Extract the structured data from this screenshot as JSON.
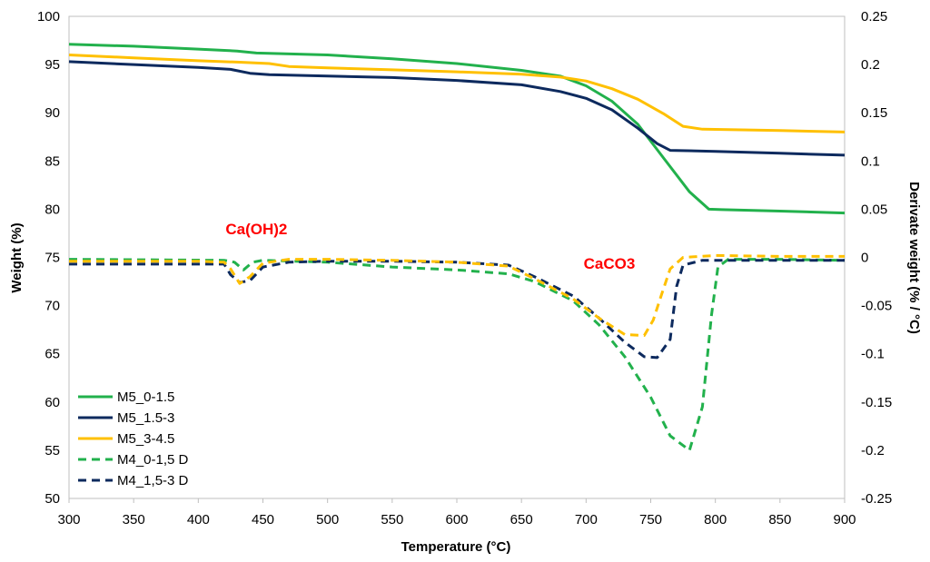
{
  "chart_data": {
    "type": "line",
    "title": "",
    "xlabel": "Temperature (°C)",
    "ylabel": "Weight (%)",
    "y2label": "Derivate weight (% / °C)",
    "xlim": [
      300,
      900
    ],
    "ylim": [
      50,
      100
    ],
    "y2lim": [
      -0.25,
      0.25
    ],
    "xticks": [
      "300",
      "350",
      "400",
      "450",
      "500",
      "550",
      "600",
      "650",
      "700",
      "750",
      "800",
      "850",
      "900"
    ],
    "yticks": [
      "50",
      "55",
      "60",
      "65",
      "70",
      "75",
      "80",
      "85",
      "90",
      "95",
      "100"
    ],
    "y2ticks": [
      "-0.25",
      "-0.2",
      "-0.15",
      "-0.1",
      "-0.05",
      "0",
      "0.05",
      "0.1",
      "0.15",
      "0.2",
      "0.25"
    ],
    "grid": false,
    "legend_position": "bottom-left",
    "annotations": [
      {
        "text": "Ca(OH)2",
        "x": 445,
        "y": 77.4,
        "color": "#ff0000"
      },
      {
        "text": "CaCO3",
        "x": 718,
        "y": 73.8,
        "color": "#ff0000"
      }
    ],
    "series": [
      {
        "name": "M5_0-1.5",
        "axis": "left",
        "color": "#22b14c",
        "dash": false,
        "points": [
          [
            300,
            97.1
          ],
          [
            350,
            96.9
          ],
          [
            400,
            96.6
          ],
          [
            430,
            96.4
          ],
          [
            445,
            96.2
          ],
          [
            500,
            96.0
          ],
          [
            550,
            95.6
          ],
          [
            600,
            95.1
          ],
          [
            650,
            94.4
          ],
          [
            680,
            93.8
          ],
          [
            700,
            92.8
          ],
          [
            720,
            91.2
          ],
          [
            740,
            88.8
          ],
          [
            760,
            85.3
          ],
          [
            780,
            81.8
          ],
          [
            795,
            80.0
          ],
          [
            805,
            79.95
          ],
          [
            850,
            79.8
          ],
          [
            900,
            79.6
          ]
        ]
      },
      {
        "name": "M5_1.5-3",
        "axis": "left",
        "color": "#0d2a5e",
        "dash": false,
        "points": [
          [
            300,
            95.3
          ],
          [
            350,
            95.0
          ],
          [
            400,
            94.7
          ],
          [
            425,
            94.5
          ],
          [
            440,
            94.1
          ],
          [
            455,
            93.95
          ],
          [
            500,
            93.8
          ],
          [
            550,
            93.65
          ],
          [
            600,
            93.35
          ],
          [
            650,
            92.9
          ],
          [
            680,
            92.2
          ],
          [
            700,
            91.5
          ],
          [
            720,
            90.3
          ],
          [
            740,
            88.4
          ],
          [
            755,
            86.8
          ],
          [
            765,
            86.1
          ],
          [
            800,
            86.0
          ],
          [
            850,
            85.8
          ],
          [
            900,
            85.6
          ]
        ]
      },
      {
        "name": "M5_3-4.5",
        "axis": "left",
        "color": "#ffc000",
        "dash": false,
        "points": [
          [
            300,
            96.0
          ],
          [
            350,
            95.7
          ],
          [
            400,
            95.4
          ],
          [
            430,
            95.25
          ],
          [
            455,
            95.1
          ],
          [
            470,
            94.8
          ],
          [
            500,
            94.65
          ],
          [
            550,
            94.45
          ],
          [
            600,
            94.25
          ],
          [
            650,
            94.0
          ],
          [
            680,
            93.7
          ],
          [
            700,
            93.3
          ],
          [
            720,
            92.5
          ],
          [
            740,
            91.4
          ],
          [
            760,
            89.9
          ],
          [
            775,
            88.6
          ],
          [
            790,
            88.3
          ],
          [
            850,
            88.15
          ],
          [
            900,
            88.0
          ]
        ]
      },
      {
        "name": "M4_0-1,5 D",
        "axis": "right",
        "color": "#22b14c",
        "dash": true,
        "points": [
          [
            300,
            -0.002
          ],
          [
            420,
            -0.003
          ],
          [
            428,
            -0.005
          ],
          [
            435,
            -0.013
          ],
          [
            442,
            -0.005
          ],
          [
            450,
            -0.003
          ],
          [
            500,
            -0.005
          ],
          [
            550,
            -0.01
          ],
          [
            600,
            -0.013
          ],
          [
            640,
            -0.017
          ],
          [
            660,
            -0.025
          ],
          [
            690,
            -0.045
          ],
          [
            710,
            -0.07
          ],
          [
            730,
            -0.103
          ],
          [
            750,
            -0.145
          ],
          [
            765,
            -0.185
          ],
          [
            780,
            -0.2
          ],
          [
            790,
            -0.155
          ],
          [
            797,
            -0.06
          ],
          [
            802,
            -0.01
          ],
          [
            810,
            -0.002
          ],
          [
            850,
            -0.002
          ],
          [
            900,
            -0.003
          ]
        ]
      },
      {
        "name": "M4_1,5-3 D",
        "axis": "right",
        "color": "#0d2a5e",
        "dash": true,
        "points": [
          [
            300,
            -0.007
          ],
          [
            350,
            -0.007
          ],
          [
            400,
            -0.007
          ],
          [
            420,
            -0.007
          ],
          [
            425,
            -0.018
          ],
          [
            432,
            -0.026
          ],
          [
            440,
            -0.024
          ],
          [
            450,
            -0.01
          ],
          [
            470,
            -0.005
          ],
          [
            500,
            -0.004
          ],
          [
            550,
            -0.004
          ],
          [
            600,
            -0.005
          ],
          [
            640,
            -0.008
          ],
          [
            660,
            -0.02
          ],
          [
            690,
            -0.04
          ],
          [
            710,
            -0.063
          ],
          [
            730,
            -0.088
          ],
          [
            745,
            -0.103
          ],
          [
            755,
            -0.104
          ],
          [
            765,
            -0.085
          ],
          [
            770,
            -0.03
          ],
          [
            775,
            -0.008
          ],
          [
            790,
            -0.003
          ],
          [
            850,
            -0.003
          ],
          [
            900,
            -0.003
          ]
        ]
      },
      {
        "name": "",
        "axis": "right",
        "color": "#ffc000",
        "dash": true,
        "points": [
          [
            300,
            -0.004
          ],
          [
            350,
            -0.004
          ],
          [
            400,
            -0.004
          ],
          [
            420,
            -0.005
          ],
          [
            425,
            -0.012
          ],
          [
            432,
            -0.027
          ],
          [
            440,
            -0.02
          ],
          [
            450,
            -0.006
          ],
          [
            470,
            -0.002
          ],
          [
            500,
            -0.002
          ],
          [
            550,
            -0.003
          ],
          [
            600,
            -0.005
          ],
          [
            640,
            -0.009
          ],
          [
            660,
            -0.022
          ],
          [
            690,
            -0.043
          ],
          [
            710,
            -0.063
          ],
          [
            730,
            -0.08
          ],
          [
            745,
            -0.081
          ],
          [
            752,
            -0.065
          ],
          [
            758,
            -0.04
          ],
          [
            765,
            -0.012
          ],
          [
            775,
            0.0
          ],
          [
            800,
            0.002
          ],
          [
            850,
            0.001
          ],
          [
            900,
            0.001
          ]
        ]
      }
    ]
  }
}
